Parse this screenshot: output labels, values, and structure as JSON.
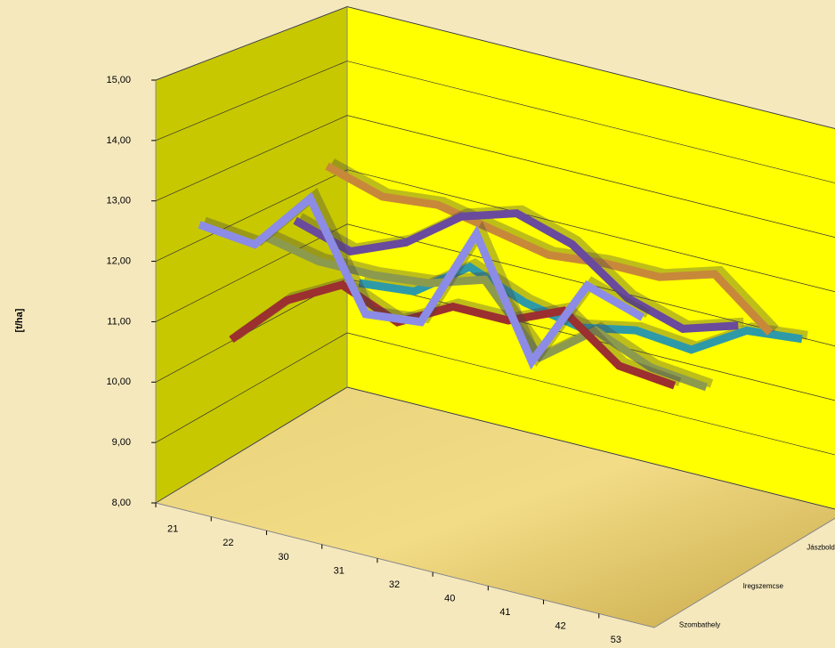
{
  "chart_data": {
    "type": "line3d",
    "y_label": "[t/ha]",
    "categories": [
      "21",
      "22",
      "30",
      "31",
      "32",
      "40",
      "41",
      "42",
      "53"
    ],
    "series": [
      {
        "name": "Szombathely",
        "color": "#8c8ce6",
        "values": [
          12.6,
          12.5,
          13.5,
          11.8,
          11.9,
          13.6,
          11.7,
          13.2,
          12.9
        ]
      },
      {
        "name": null,
        "color": "#9c2f2f",
        "values": [
          10.4,
          11.3,
          11.8,
          11.4,
          11.9,
          11.9,
          12.3,
          11.6,
          11.5
        ]
      },
      {
        "name": "Iregszemcse",
        "color": "#8c9a4e",
        "values": [
          11.9,
          11.7,
          11.7,
          11.8,
          12.1,
          11.0,
          11.7,
          11.3,
          11.2
        ]
      },
      {
        "name": null,
        "color": "#6a4a9c",
        "values": [
          11.9,
          11.6,
          12.0,
          12.7,
          13.0,
          12.7,
          12.0,
          11.7,
          12.0
        ]
      },
      {
        "name": "Jászboldogház",
        "color": "#c8883a",
        "values": [
          12.6,
          12.3,
          12.4,
          12.2,
          12.0,
          12.1,
          12.1,
          12.4,
          11.6
        ]
      },
      {
        "name": null,
        "color": "#2e9aa8",
        "values": [
          10.2,
          10.3,
          11.0,
          10.6,
          10.4,
          10.6,
          10.5,
          11.1,
          11.2
        ]
      }
    ],
    "ylim": [
      8,
      15
    ],
    "yticks": [
      {
        "value": 8,
        "label": "8,00"
      },
      {
        "value": 9,
        "label": "9,00"
      },
      {
        "value": 10,
        "label": "10,00"
      },
      {
        "value": 11,
        "label": "11,00"
      },
      {
        "value": 12,
        "label": "12,00"
      },
      {
        "value": 13,
        "label": "13,00"
      },
      {
        "value": 14,
        "label": "14,00"
      },
      {
        "value": 15,
        "label": "15,00"
      }
    ],
    "grid": true
  }
}
